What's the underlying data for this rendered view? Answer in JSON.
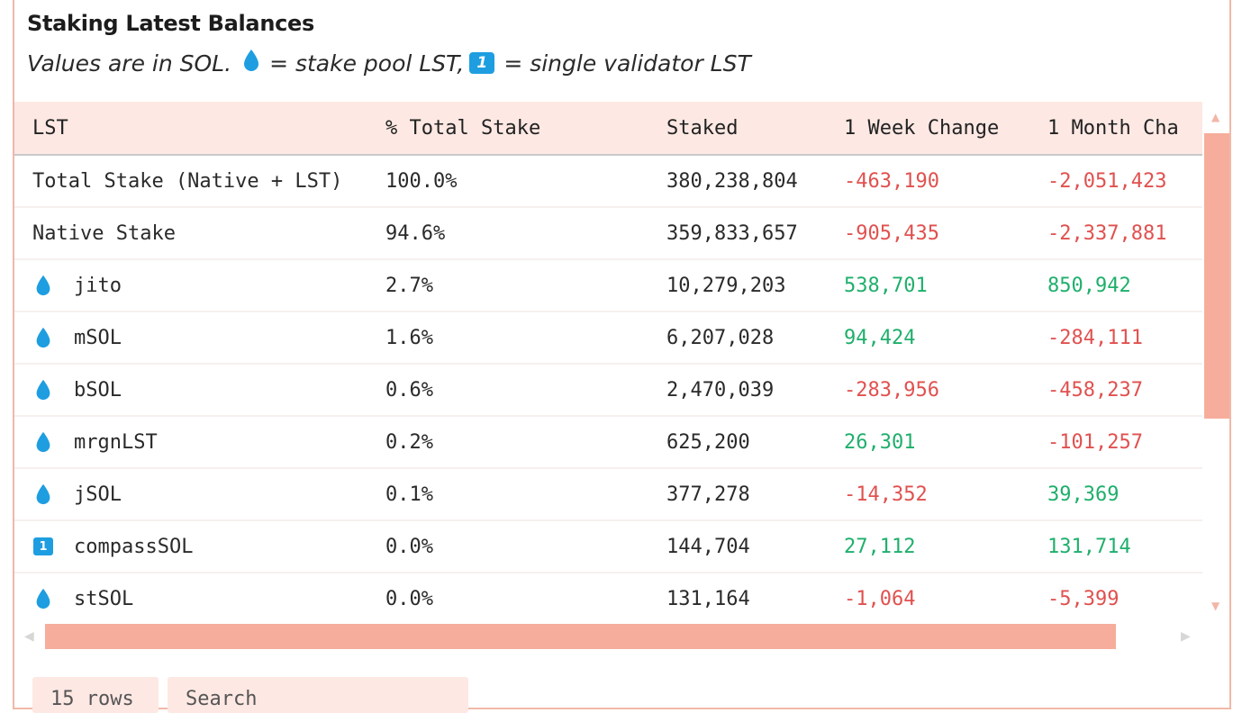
{
  "title": "Staking Latest Balances",
  "subtitle": {
    "prefix": "Values are in SOL.",
    "pool_text": "= stake pool LST,",
    "badge_text": "1",
    "validator_text": "= single validator LST"
  },
  "columns": [
    "LST",
    "% Total Stake",
    "Staked",
    "1 Week Change",
    "1 Month Cha"
  ],
  "rows": [
    {
      "name": "Total Stake (Native + LST)",
      "icon": "",
      "pct": "100.0%",
      "staked": "380,238,804",
      "week": "-463,190",
      "week_sign": "neg",
      "month": "-2,051,423",
      "month_sign": "neg"
    },
    {
      "name": "Native Stake",
      "icon": "",
      "pct": "94.6%",
      "staked": "359,833,657",
      "week": "-905,435",
      "week_sign": "neg",
      "month": "-2,337,881",
      "month_sign": "neg"
    },
    {
      "name": "jito",
      "icon": "drop-icon",
      "pct": "2.7%",
      "staked": "10,279,203",
      "week": "538,701",
      "week_sign": "pos",
      "month": "850,942",
      "month_sign": "pos"
    },
    {
      "name": "mSOL",
      "icon": "drop-icon",
      "pct": "1.6%",
      "staked": "6,207,028",
      "week": "94,424",
      "week_sign": "pos",
      "month": "-284,111",
      "month_sign": "neg"
    },
    {
      "name": "bSOL",
      "icon": "drop-icon",
      "pct": "0.6%",
      "staked": "2,470,039",
      "week": "-283,956",
      "week_sign": "neg",
      "month": "-458,237",
      "month_sign": "neg"
    },
    {
      "name": "mrgnLST",
      "icon": "drop-icon",
      "pct": "0.2%",
      "staked": "625,200",
      "week": "26,301",
      "week_sign": "pos",
      "month": "-101,257",
      "month_sign": "neg"
    },
    {
      "name": "jSOL",
      "icon": "drop-icon",
      "pct": "0.1%",
      "staked": "377,278",
      "week": "-14,352",
      "week_sign": "neg",
      "month": "39,369",
      "month_sign": "pos"
    },
    {
      "name": "compassSOL",
      "icon": "validator-badge-icon",
      "pct": "0.0%",
      "staked": "144,704",
      "week": "27,112",
      "week_sign": "pos",
      "month": "131,714",
      "month_sign": "pos"
    },
    {
      "name": "stSOL",
      "icon": "drop-icon",
      "pct": "0.0%",
      "staked": "131,164",
      "week": "-1,064",
      "week_sign": "neg",
      "month": "-5,399",
      "month_sign": "neg"
    }
  ],
  "footer": {
    "page_size": "15 rows",
    "search_placeholder": "Search"
  },
  "colors": {
    "negative": "#e0514f",
    "positive": "#1faf6c",
    "drop": "#1e9ee0",
    "accent": "#f6ad9c"
  }
}
